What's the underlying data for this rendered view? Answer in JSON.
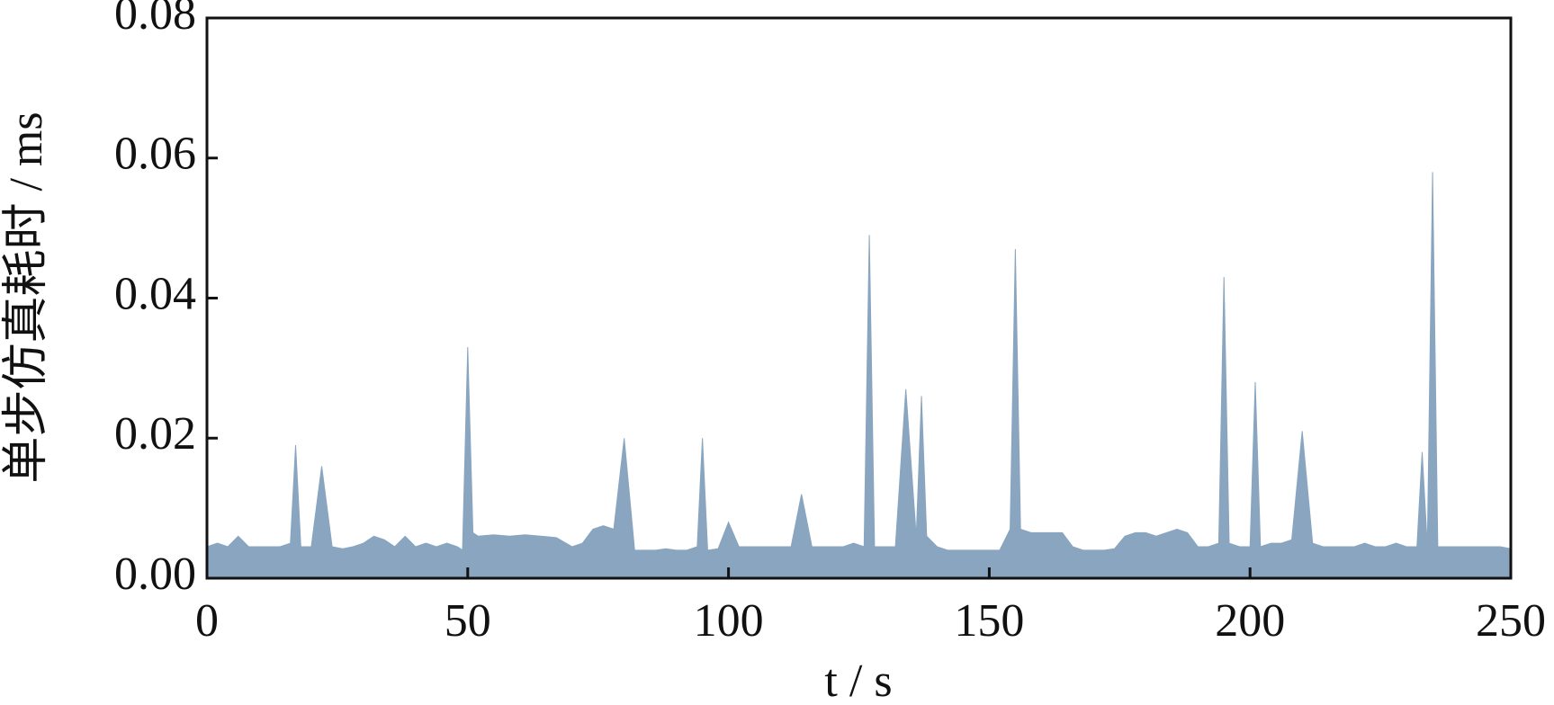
{
  "chart_data": {
    "type": "area",
    "xlabel": "t / s",
    "ylabel": "单步仿真耗时 / ms",
    "color": "#89a5c0",
    "xlim": [
      0,
      250
    ],
    "ylim": [
      0,
      0.08
    ],
    "xticks": [
      0,
      50,
      100,
      150,
      200,
      250
    ],
    "yticks": [
      {
        "value": 0,
        "label": "0.00"
      },
      0.02,
      0.04,
      0.06,
      0.08
    ],
    "x": [
      0,
      2,
      4,
      6,
      8,
      10,
      12,
      14,
      16,
      17,
      18,
      20,
      22,
      24,
      26,
      28,
      30,
      32,
      34,
      36,
      38,
      40,
      42,
      44,
      46,
      48,
      49,
      50,
      51,
      52,
      55,
      58,
      61,
      64,
      67,
      70,
      72,
      74,
      76,
      78,
      80,
      82,
      84,
      86,
      88,
      90,
      92,
      94,
      95,
      96,
      98,
      100,
      102,
      104,
      106,
      108,
      110,
      112,
      114,
      116,
      118,
      120,
      122,
      124,
      126,
      127,
      128,
      130,
      132,
      134,
      136,
      137,
      138,
      140,
      142,
      144,
      146,
      148,
      150,
      152,
      154,
      155,
      156,
      158,
      160,
      162,
      164,
      166,
      168,
      170,
      172,
      174,
      176,
      178,
      180,
      182,
      184,
      186,
      188,
      190,
      192,
      194,
      195,
      196,
      198,
      200,
      201,
      202,
      204,
      206,
      208,
      210,
      212,
      214,
      216,
      218,
      220,
      222,
      224,
      226,
      228,
      230,
      232,
      233,
      234,
      235,
      236,
      238,
      240,
      242,
      244,
      246,
      248,
      250
    ],
    "values": [
      0.0045,
      0.005,
      0.0045,
      0.006,
      0.0045,
      0.0045,
      0.0045,
      0.0045,
      0.005,
      0.019,
      0.0045,
      0.0045,
      0.016,
      0.0045,
      0.0042,
      0.0045,
      0.005,
      0.006,
      0.0055,
      0.0045,
      0.006,
      0.0045,
      0.005,
      0.0045,
      0.005,
      0.0045,
      0.004,
      0.033,
      0.0065,
      0.006,
      0.0062,
      0.006,
      0.0062,
      0.006,
      0.0058,
      0.0045,
      0.005,
      0.007,
      0.0075,
      0.007,
      0.02,
      0.004,
      0.004,
      0.004,
      0.0042,
      0.004,
      0.004,
      0.0045,
      0.02,
      0.004,
      0.0042,
      0.008,
      0.0045,
      0.0045,
      0.0045,
      0.0045,
      0.0045,
      0.0045,
      0.012,
      0.0045,
      0.0045,
      0.0045,
      0.0045,
      0.005,
      0.0045,
      0.049,
      0.0045,
      0.0045,
      0.0045,
      0.027,
      0.006,
      0.026,
      0.006,
      0.0045,
      0.004,
      0.004,
      0.004,
      0.004,
      0.004,
      0.004,
      0.007,
      0.047,
      0.007,
      0.0065,
      0.0065,
      0.0065,
      0.0065,
      0.0045,
      0.004,
      0.004,
      0.004,
      0.0042,
      0.006,
      0.0065,
      0.0065,
      0.006,
      0.0065,
      0.007,
      0.0065,
      0.0045,
      0.0045,
      0.005,
      0.043,
      0.005,
      0.0045,
      0.0045,
      0.028,
      0.0045,
      0.005,
      0.005,
      0.0055,
      0.021,
      0.005,
      0.0045,
      0.0045,
      0.0045,
      0.0045,
      0.005,
      0.0045,
      0.0045,
      0.005,
      0.0045,
      0.0045,
      0.018,
      0.0045,
      0.058,
      0.0045,
      0.0045,
      0.0045,
      0.0045,
      0.0045,
      0.0045,
      0.0045,
      0.0042
    ]
  }
}
